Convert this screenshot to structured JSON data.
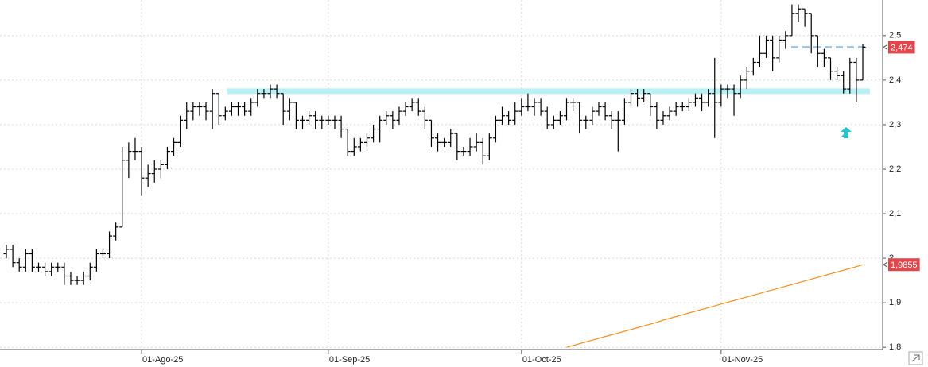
{
  "chart_data": {
    "type": "ohlc",
    "categories": [
      null,
      null,
      null,
      null,
      null,
      null,
      null,
      null,
      null,
      null,
      null,
      null,
      null,
      null,
      null,
      null,
      null,
      null,
      null,
      null,
      null,
      "01-Ago-25",
      null,
      null,
      null,
      null,
      null,
      null,
      null,
      null,
      null,
      null,
      null,
      null,
      null,
      null,
      null,
      null,
      null,
      null,
      null,
      null,
      null,
      null,
      null,
      null,
      null,
      null,
      null,
      null,
      "01-Sep-25",
      null,
      null,
      null,
      null,
      null,
      null,
      null,
      null,
      null,
      null,
      null,
      null,
      null,
      null,
      null,
      null,
      null,
      null,
      null,
      null,
      null,
      null,
      null,
      null,
      null,
      null,
      null,
      null,
      null,
      "01-Oct-25",
      null,
      null,
      null,
      null,
      null,
      null,
      null,
      null,
      null,
      null,
      null,
      null,
      null,
      null,
      null,
      null,
      null,
      null,
      null,
      null,
      null,
      null,
      null,
      null,
      null,
      null,
      null,
      null,
      null,
      null,
      "01-Nov-25",
      null,
      null,
      null,
      null,
      null,
      null,
      null,
      null,
      null,
      null,
      null,
      null,
      null,
      null,
      null,
      null,
      null,
      null,
      null,
      null,
      null,
      null
    ],
    "open": [
      2.01,
      2.02,
      1.99,
      1.98,
      2.01,
      1.98,
      1.98,
      1.97,
      1.98,
      1.98,
      1.96,
      1.95,
      1.95,
      1.96,
      1.98,
      2.01,
      2.01,
      2.05,
      2.07,
      2.22,
      2.24,
      2.24,
      2.18,
      2.19,
      2.2,
      2.21,
      2.24,
      2.26,
      2.31,
      2.33,
      2.34,
      2.34,
      2.33,
      2.37,
      2.32,
      2.33,
      2.34,
      2.34,
      2.33,
      2.35,
      2.37,
      2.37,
      2.38,
      2.37,
      2.33,
      2.35,
      2.31,
      2.31,
      2.32,
      2.31,
      2.31,
      2.31,
      2.31,
      2.29,
      2.24,
      2.25,
      2.26,
      2.27,
      2.29,
      2.31,
      2.32,
      2.31,
      2.33,
      2.34,
      2.35,
      2.33,
      2.31,
      2.27,
      2.26,
      2.26,
      2.28,
      2.24,
      2.24,
      2.25,
      2.26,
      2.23,
      2.27,
      2.31,
      2.32,
      2.31,
      2.33,
      2.34,
      2.34,
      2.35,
      2.33,
      2.3,
      2.31,
      2.32,
      2.35,
      2.35,
      2.31,
      2.31,
      2.33,
      2.34,
      2.32,
      2.31,
      2.31,
      2.35,
      2.37,
      2.36,
      2.37,
      2.34,
      2.31,
      2.32,
      2.33,
      2.34,
      2.34,
      2.35,
      2.36,
      2.35,
      2.37,
      2.35,
      2.38,
      2.38,
      2.37,
      2.4,
      2.42,
      2.44,
      2.46,
      2.49,
      2.45,
      2.49,
      2.5,
      2.55,
      2.56,
      2.55,
      2.5,
      2.46,
      2.45,
      2.42,
      2.41,
      2.38,
      2.44,
      2.4
    ],
    "high": [
      2.03,
      2.03,
      2.0,
      2.02,
      2.02,
      1.99,
      1.99,
      1.99,
      1.99,
      1.99,
      1.97,
      1.96,
      1.97,
      1.99,
      2.02,
      2.02,
      2.06,
      2.08,
      2.25,
      2.26,
      2.27,
      2.25,
      2.21,
      2.22,
      2.22,
      2.25,
      2.27,
      2.32,
      2.35,
      2.35,
      2.35,
      2.35,
      2.38,
      2.37,
      2.34,
      2.35,
      2.35,
      2.35,
      2.36,
      2.38,
      2.38,
      2.39,
      2.39,
      2.37,
      2.36,
      2.35,
      2.32,
      2.33,
      2.33,
      2.32,
      2.32,
      2.32,
      2.32,
      2.29,
      2.27,
      2.27,
      2.28,
      2.3,
      2.32,
      2.33,
      2.33,
      2.34,
      2.35,
      2.36,
      2.36,
      2.34,
      2.31,
      2.28,
      2.27,
      2.29,
      2.28,
      2.25,
      2.27,
      2.28,
      2.27,
      2.28,
      2.32,
      2.34,
      2.33,
      2.35,
      2.36,
      2.37,
      2.36,
      2.36,
      2.34,
      2.32,
      2.33,
      2.36,
      2.36,
      2.35,
      2.32,
      2.34,
      2.35,
      2.35,
      2.33,
      2.33,
      2.36,
      2.38,
      2.38,
      2.38,
      2.37,
      2.35,
      2.33,
      2.34,
      2.35,
      2.35,
      2.36,
      2.37,
      2.37,
      2.38,
      2.45,
      2.39,
      2.39,
      2.39,
      2.41,
      2.43,
      2.45,
      2.5,
      2.5,
      2.5,
      2.5,
      2.51,
      2.57,
      2.57,
      2.56,
      2.55,
      2.5,
      2.47,
      2.45,
      2.43,
      2.42,
      2.45,
      2.45,
      2.48
    ],
    "low": [
      2.0,
      1.98,
      1.97,
      1.97,
      1.97,
      1.97,
      1.96,
      1.96,
      1.97,
      1.94,
      1.94,
      1.94,
      1.94,
      1.95,
      1.97,
      2.0,
      2.0,
      2.04,
      2.07,
      2.18,
      2.22,
      2.14,
      2.16,
      2.17,
      2.18,
      2.2,
      2.23,
      2.25,
      2.29,
      2.31,
      2.32,
      2.31,
      2.29,
      2.3,
      2.31,
      2.32,
      2.32,
      2.32,
      2.32,
      2.34,
      2.36,
      2.36,
      2.36,
      2.3,
      2.31,
      2.29,
      2.29,
      2.3,
      2.29,
      2.29,
      2.3,
      2.29,
      2.27,
      2.23,
      2.23,
      2.24,
      2.25,
      2.26,
      2.26,
      2.3,
      2.29,
      2.3,
      2.32,
      2.33,
      2.32,
      2.29,
      2.25,
      2.24,
      2.25,
      2.25,
      2.22,
      2.23,
      2.23,
      2.24,
      2.21,
      2.22,
      2.26,
      2.3,
      2.3,
      2.3,
      2.32,
      2.33,
      2.32,
      2.32,
      2.29,
      2.29,
      2.3,
      2.31,
      2.33,
      2.28,
      2.29,
      2.3,
      2.32,
      2.31,
      2.29,
      2.24,
      2.3,
      2.34,
      2.34,
      2.35,
      2.32,
      2.29,
      2.3,
      2.31,
      2.32,
      2.33,
      2.33,
      2.34,
      2.33,
      2.34,
      2.27,
      2.34,
      2.36,
      2.32,
      2.36,
      2.38,
      2.41,
      2.43,
      2.45,
      2.42,
      2.44,
      2.47,
      2.5,
      2.53,
      2.52,
      2.46,
      2.43,
      2.43,
      2.4,
      2.4,
      2.37,
      2.37,
      2.35,
      2.4
    ],
    "close": [
      2.02,
      1.99,
      1.98,
      2.01,
      1.98,
      1.98,
      1.97,
      1.98,
      1.98,
      1.96,
      1.95,
      1.95,
      1.96,
      1.98,
      2.01,
      2.01,
      2.05,
      2.07,
      2.22,
      2.24,
      2.24,
      2.18,
      2.19,
      2.2,
      2.21,
      2.24,
      2.26,
      2.31,
      2.33,
      2.34,
      2.34,
      2.33,
      2.37,
      2.32,
      2.33,
      2.34,
      2.34,
      2.33,
      2.35,
      2.37,
      2.37,
      2.38,
      2.37,
      2.33,
      2.35,
      2.31,
      2.31,
      2.32,
      2.31,
      2.31,
      2.31,
      2.31,
      2.29,
      2.24,
      2.25,
      2.26,
      2.27,
      2.29,
      2.31,
      2.32,
      2.31,
      2.33,
      2.34,
      2.35,
      2.33,
      2.31,
      2.27,
      2.26,
      2.26,
      2.28,
      2.24,
      2.24,
      2.25,
      2.26,
      2.23,
      2.27,
      2.31,
      2.32,
      2.31,
      2.33,
      2.34,
      2.34,
      2.35,
      2.33,
      2.3,
      2.31,
      2.32,
      2.35,
      2.35,
      2.31,
      2.31,
      2.33,
      2.34,
      2.32,
      2.31,
      2.31,
      2.35,
      2.37,
      2.36,
      2.37,
      2.34,
      2.31,
      2.32,
      2.33,
      2.34,
      2.34,
      2.35,
      2.36,
      2.35,
      2.37,
      2.35,
      2.38,
      2.38,
      2.37,
      2.4,
      2.42,
      2.44,
      2.46,
      2.49,
      2.45,
      2.49,
      2.5,
      2.55,
      2.56,
      2.55,
      2.5,
      2.46,
      2.45,
      2.42,
      2.41,
      2.38,
      2.44,
      2.4,
      2.474
    ],
    "color": "#000000",
    "series": [
      {
        "color": "#f0901e",
        "values": [
          null,
          null,
          null,
          null,
          null,
          null,
          null,
          null,
          null,
          null,
          null,
          null,
          null,
          null,
          null,
          null,
          null,
          null,
          null,
          null,
          null,
          null,
          null,
          null,
          null,
          null,
          null,
          null,
          null,
          null,
          null,
          null,
          null,
          null,
          null,
          null,
          null,
          null,
          null,
          null,
          null,
          null,
          null,
          null,
          null,
          null,
          null,
          null,
          null,
          null,
          null,
          null,
          null,
          null,
          null,
          null,
          null,
          null,
          null,
          null,
          null,
          null,
          null,
          null,
          null,
          null,
          null,
          null,
          null,
          null,
          null,
          null,
          null,
          null,
          null,
          null,
          null,
          null,
          null,
          null,
          null,
          null,
          null,
          null,
          null,
          null,
          null,
          1.8,
          1.804,
          1.808,
          1.812,
          1.816,
          1.82,
          1.824,
          1.828,
          1.832,
          1.836,
          1.84,
          1.844,
          1.848,
          1.852,
          1.856,
          1.861,
          1.865,
          1.869,
          1.873,
          1.877,
          1.881,
          1.885,
          1.889,
          1.893,
          1.897,
          1.901,
          1.905,
          1.909,
          1.913,
          1.917,
          1.921,
          1.925,
          1.929,
          1.933,
          1.937,
          1.941,
          1.945,
          1.949,
          1.953,
          1.957,
          1.961,
          1.965,
          1.969,
          1.973,
          1.977,
          1.981,
          1.9855
        ]
      }
    ],
    "hlines": [
      {
        "value": 2.375,
        "color": "#b8f0f6",
        "style": "solid"
      },
      {
        "value": 2.474,
        "color": "#9ec1e4",
        "style": "dashed"
      }
    ],
    "price_labels": [
      {
        "value": 2.474,
        "label": "2,474"
      },
      {
        "value": 1.9855,
        "label": "1,9855"
      }
    ],
    "ylim": [
      1.795,
      2.58
    ],
    "yticks": [
      {
        "value": 1.8,
        "label": "1,8"
      },
      {
        "value": 1.9,
        "label": "1,9"
      },
      2,
      {
        "value": 2.1,
        "label": "2,1"
      },
      {
        "value": 2.2,
        "label": "2,2"
      },
      {
        "value": 2.3,
        "label": "2,3"
      },
      {
        "value": 2.4,
        "label": "2,4"
      },
      {
        "value": 2.5,
        "label": "2,5"
      }
    ],
    "grid": true
  }
}
